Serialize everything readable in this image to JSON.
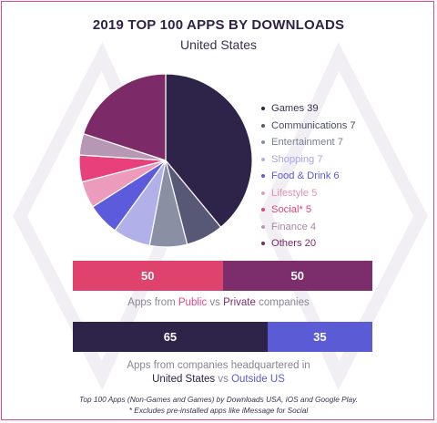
{
  "title": "2019 TOP 100 APPS BY DOWNLOADS",
  "subtitle": "United States",
  "chart_data": [
    {
      "type": "pie",
      "title": "",
      "categories": [
        "Games",
        "Communications",
        "Entertainment",
        "Shopping",
        "Food & Drink",
        "Lifestyle",
        "Social*",
        "Finance",
        "Others"
      ],
      "values": [
        39,
        7,
        7,
        7,
        6,
        5,
        5,
        4,
        20
      ],
      "colors": [
        "#2e2348",
        "#565876",
        "#8a8fa3",
        "#b2b0e8",
        "#5c5bdc",
        "#ec9bbd",
        "#e8407a",
        "#b798b4",
        "#7d2a69"
      ],
      "labels": [
        "Games 39",
        "Communications 7",
        "Entertainment 7",
        "Shopping 7",
        "Food & Drink 6",
        "Lifestyle 5",
        "Social* 5",
        "Finance 4",
        "Others 20"
      ],
      "legend": "right"
    },
    {
      "type": "bar",
      "categories": [
        "Public",
        "Private"
      ],
      "values": [
        50,
        50
      ],
      "labels": [
        "50",
        "50"
      ],
      "colors": [
        "#e0426e",
        "#7b2d6c"
      ]
    },
    {
      "type": "bar",
      "categories": [
        "United States",
        "Outside US"
      ],
      "values": [
        65,
        35
      ],
      "labels": [
        "65",
        "35"
      ],
      "colors": [
        "#2e2348",
        "#5b5bd6"
      ]
    }
  ],
  "caption1": {
    "pre": "Apps from ",
    "a": "Public",
    "mid": " vs ",
    "b": "Private",
    "post": " companies"
  },
  "caption2": {
    "line1": "Apps from companies headquartered in",
    "a": "United States",
    "mid": " vs ",
    "b": "Outside US"
  },
  "footnote": {
    "line1": "Top 100 Apps (Non-Games and Games) by Downloads USA, iOS and Google Play.",
    "line2": "* Excludes pre-installed apps like iMessage for Social"
  }
}
